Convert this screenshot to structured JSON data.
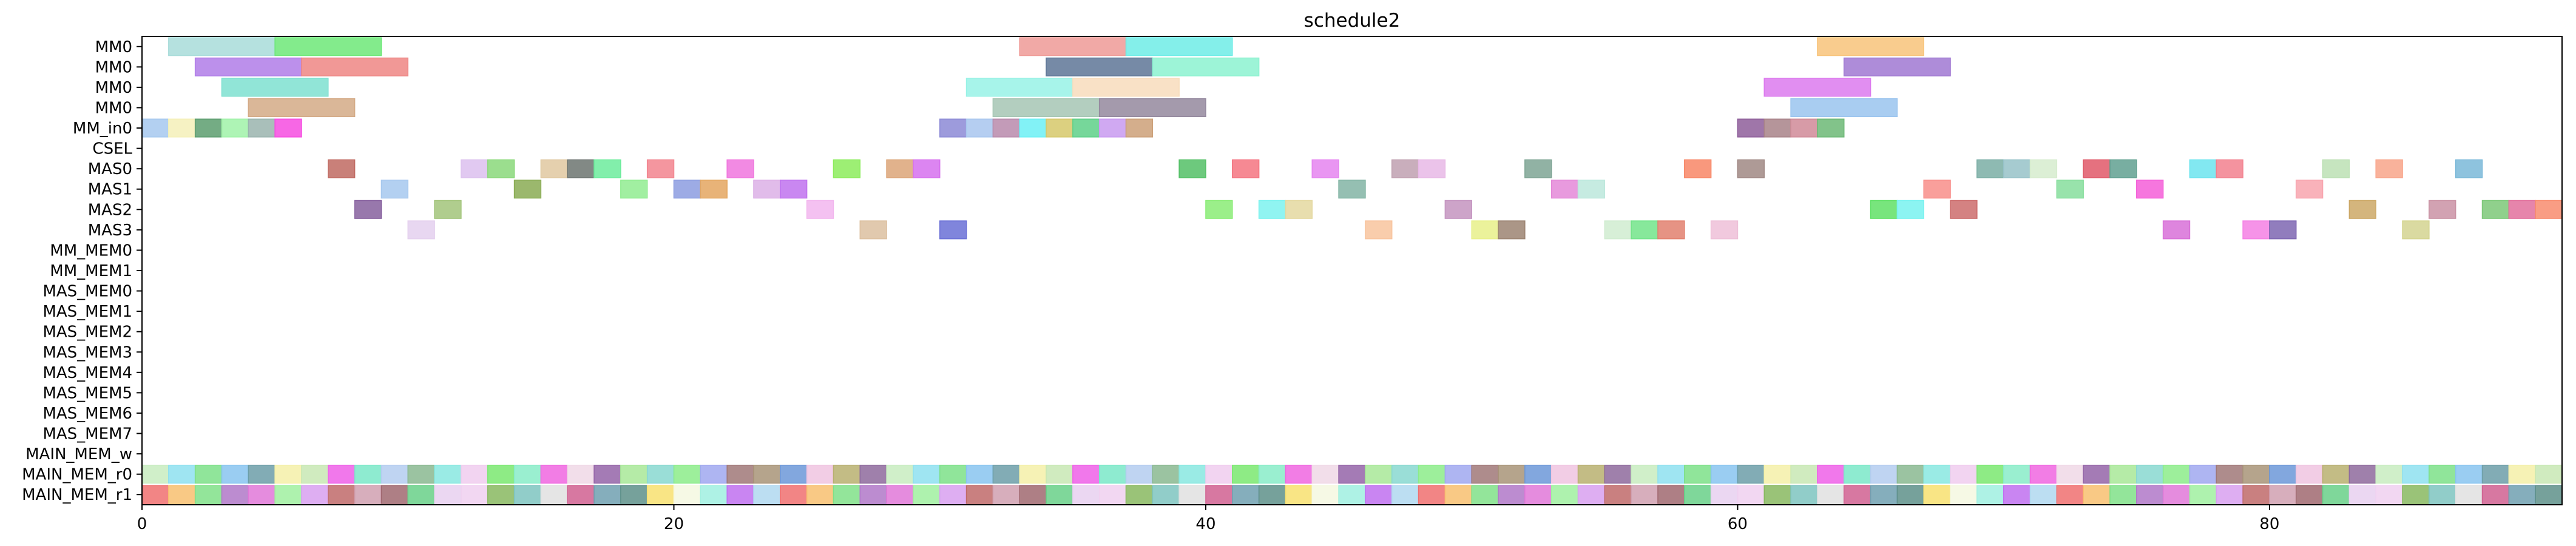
{
  "chart_data": {
    "type": "gantt",
    "title": "schedule2",
    "xlabel": "",
    "ylabel": "",
    "xlim": [
      0,
      91
    ],
    "x_ticks": [
      "0",
      "20",
      "40",
      "60",
      "80"
    ],
    "x_tick_values": [
      0,
      20,
      40,
      60,
      80
    ],
    "rows": [
      "MM0",
      "MM0",
      "MM0",
      "MM0",
      "MM_in0",
      "CSEL",
      "MAS0",
      "MAS1",
      "MAS2",
      "MAS3",
      "MM_MEM0",
      "MM_MEM1",
      "MAS_MEM0",
      "MAS_MEM1",
      "MAS_MEM2",
      "MAS_MEM3",
      "MAS_MEM4",
      "MAS_MEM5",
      "MAS_MEM6",
      "MAS_MEM7",
      "MAIN_MEM_w",
      "MAIN_MEM_r0",
      "MAIN_MEM_r1"
    ],
    "tasks": [
      {
        "row": 0,
        "start": 1,
        "end": 5,
        "color": "#a8dcd9"
      },
      {
        "row": 0,
        "start": 5,
        "end": 9,
        "color": "#6de878"
      },
      {
        "row": 0,
        "start": 33,
        "end": 37,
        "color": "#ef9a96"
      },
      {
        "row": 0,
        "start": 37,
        "end": 41,
        "color": "#6eece6"
      },
      {
        "row": 0,
        "start": 63,
        "end": 67,
        "color": "#f8c37a"
      },
      {
        "row": 1,
        "start": 2,
        "end": 6,
        "color": "#b07ce8"
      },
      {
        "row": 1,
        "start": 6,
        "end": 10,
        "color": "#ee8684"
      },
      {
        "row": 1,
        "start": 34,
        "end": 38,
        "color": "#5e7696"
      },
      {
        "row": 1,
        "start": 38,
        "end": 42,
        "color": "#8cf2d0"
      },
      {
        "row": 1,
        "start": 64,
        "end": 68,
        "color": "#a078d2"
      },
      {
        "row": 2,
        "start": 3,
        "end": 7,
        "color": "#7ee0d0"
      },
      {
        "row": 2,
        "start": 31,
        "end": 35,
        "color": "#98f2e6"
      },
      {
        "row": 2,
        "start": 35,
        "end": 39,
        "color": "#f8dcbc"
      },
      {
        "row": 2,
        "start": 61,
        "end": 65,
        "color": "#dc7aee"
      },
      {
        "row": 3,
        "start": 4,
        "end": 8,
        "color": "#d4aa86"
      },
      {
        "row": 3,
        "start": 32,
        "end": 36,
        "color": "#a6c6b4"
      },
      {
        "row": 3,
        "start": 36,
        "end": 40,
        "color": "#94889e"
      },
      {
        "row": 3,
        "start": 62,
        "end": 66,
        "color": "#9ac4ee"
      },
      {
        "row": 4,
        "start": 0,
        "end": 1,
        "color": "#a6c8ee"
      },
      {
        "row": 4,
        "start": 1,
        "end": 2,
        "color": "#f4f0b8"
      },
      {
        "row": 4,
        "start": 2,
        "end": 3,
        "color": "#5c9e6e"
      },
      {
        "row": 4,
        "start": 3,
        "end": 4,
        "color": "#a0f2a8"
      },
      {
        "row": 4,
        "start": 4,
        "end": 5,
        "color": "#9ab4ae"
      },
      {
        "row": 4,
        "start": 5,
        "end": 6,
        "color": "#f64ce0"
      },
      {
        "row": 4,
        "start": 30,
        "end": 31,
        "color": "#8c8ad6"
      },
      {
        "row": 4,
        "start": 31,
        "end": 32,
        "color": "#a8c6ee"
      },
      {
        "row": 4,
        "start": 32,
        "end": 33,
        "color": "#b88aac"
      },
      {
        "row": 4,
        "start": 33,
        "end": 34,
        "color": "#6cf0f4"
      },
      {
        "row": 4,
        "start": 34,
        "end": 35,
        "color": "#d6c86a"
      },
      {
        "row": 4,
        "start": 35,
        "end": 36,
        "color": "#5ed088"
      },
      {
        "row": 4,
        "start": 36,
        "end": 37,
        "color": "#c89af0"
      },
      {
        "row": 4,
        "start": 37,
        "end": 38,
        "color": "#cca078"
      },
      {
        "row": 4,
        "start": 60,
        "end": 61,
        "color": "#8e5e9a"
      },
      {
        "row": 4,
        "start": 61,
        "end": 62,
        "color": "#a88288"
      },
      {
        "row": 4,
        "start": 62,
        "end": 63,
        "color": "#d08a98"
      },
      {
        "row": 4,
        "start": 63,
        "end": 64,
        "color": "#6cb876"
      },
      {
        "row": 6,
        "start": 7,
        "end": 8,
        "color": "#c06a62"
      },
      {
        "row": 6,
        "start": 12,
        "end": 13,
        "color": "#dcc0ee"
      },
      {
        "row": 6,
        "start": 13,
        "end": 14,
        "color": "#8ad87a"
      },
      {
        "row": 6,
        "start": 15,
        "end": 16,
        "color": "#e0c8a0"
      },
      {
        "row": 6,
        "start": 16,
        "end": 17,
        "color": "#6c7470"
      },
      {
        "row": 6,
        "start": 17,
        "end": 18,
        "color": "#6cec9c"
      },
      {
        "row": 6,
        "start": 19,
        "end": 20,
        "color": "#f2848e"
      },
      {
        "row": 6,
        "start": 22,
        "end": 23,
        "color": "#f076de"
      },
      {
        "row": 6,
        "start": 26,
        "end": 27,
        "color": "#8cec5c"
      },
      {
        "row": 6,
        "start": 28,
        "end": 29,
        "color": "#dca478"
      },
      {
        "row": 6,
        "start": 29,
        "end": 30,
        "color": "#d670ee"
      },
      {
        "row": 6,
        "start": 39,
        "end": 40,
        "color": "#54c066"
      },
      {
        "row": 6,
        "start": 41,
        "end": 42,
        "color": "#f47480"
      },
      {
        "row": 6,
        "start": 44,
        "end": 45,
        "color": "#e584f0"
      },
      {
        "row": 6,
        "start": 47,
        "end": 48,
        "color": "#c0a0b0"
      },
      {
        "row": 6,
        "start": 48,
        "end": 49,
        "color": "#e8b8e6"
      },
      {
        "row": 6,
        "start": 52,
        "end": 53,
        "color": "#7ea494"
      },
      {
        "row": 6,
        "start": 58,
        "end": 59,
        "color": "#f88666"
      },
      {
        "row": 6,
        "start": 60,
        "end": 61,
        "color": "#a08884"
      },
      {
        "row": 6,
        "start": 69,
        "end": 70,
        "color": "#7aaea4"
      },
      {
        "row": 6,
        "start": 70,
        "end": 71,
        "color": "#96c2c8"
      },
      {
        "row": 6,
        "start": 71,
        "end": 72,
        "color": "#d6ecce"
      },
      {
        "row": 6,
        "start": 73,
        "end": 74,
        "color": "#e05868"
      },
      {
        "row": 6,
        "start": 74,
        "end": 75,
        "color": "#60a090"
      },
      {
        "row": 6,
        "start": 77,
        "end": 78,
        "color": "#6ce4ee"
      },
      {
        "row": 6,
        "start": 78,
        "end": 79,
        "color": "#f2808e"
      },
      {
        "row": 6,
        "start": 82,
        "end": 83,
        "color": "#bce0b4"
      },
      {
        "row": 6,
        "start": 84,
        "end": 85,
        "color": "#f8a48a"
      },
      {
        "row": 6,
        "start": 87,
        "end": 88,
        "color": "#7ab8d8"
      },
      {
        "row": 7,
        "start": 9,
        "end": 10,
        "color": "#a6c8ee"
      },
      {
        "row": 7,
        "start": 14,
        "end": 15,
        "color": "#8aac54"
      },
      {
        "row": 7,
        "start": 18,
        "end": 19,
        "color": "#90ec90"
      },
      {
        "row": 7,
        "start": 20,
        "end": 21,
        "color": "#8c9ce0"
      },
      {
        "row": 7,
        "start": 21,
        "end": 22,
        "color": "#e4a660"
      },
      {
        "row": 7,
        "start": 23,
        "end": 24,
        "color": "#dcb0e6"
      },
      {
        "row": 7,
        "start": 24,
        "end": 25,
        "color": "#c072ee"
      },
      {
        "row": 7,
        "start": 45,
        "end": 46,
        "color": "#82b4a4"
      },
      {
        "row": 7,
        "start": 53,
        "end": 54,
        "color": "#e488d8"
      },
      {
        "row": 7,
        "start": 54,
        "end": 55,
        "color": "#bce8dc"
      },
      {
        "row": 7,
        "start": 67,
        "end": 68,
        "color": "#f88e8a"
      },
      {
        "row": 7,
        "start": 72,
        "end": 73,
        "color": "#86de9c"
      },
      {
        "row": 7,
        "start": 75,
        "end": 76,
        "color": "#f45ed8"
      },
      {
        "row": 7,
        "start": 81,
        "end": 82,
        "color": "#f8a4ae"
      },
      {
        "row": 8,
        "start": 8,
        "end": 9,
        "color": "#86609e"
      },
      {
        "row": 8,
        "start": 11,
        "end": 12,
        "color": "#a2c47a"
      },
      {
        "row": 8,
        "start": 25,
        "end": 26,
        "color": "#f2b6ee"
      },
      {
        "row": 8,
        "start": 40,
        "end": 41,
        "color": "#8aec76"
      },
      {
        "row": 8,
        "start": 42,
        "end": 43,
        "color": "#7cf2ee"
      },
      {
        "row": 8,
        "start": 43,
        "end": 44,
        "color": "#e4d8a0"
      },
      {
        "row": 8,
        "start": 49,
        "end": 50,
        "color": "#c494c0"
      },
      {
        "row": 8,
        "start": 65,
        "end": 66,
        "color": "#60e066"
      },
      {
        "row": 8,
        "start": 66,
        "end": 67,
        "color": "#78f2f0"
      },
      {
        "row": 8,
        "start": 68,
        "end": 69,
        "color": "#cc6c6c"
      },
      {
        "row": 8,
        "start": 83,
        "end": 84,
        "color": "#cca866"
      },
      {
        "row": 8,
        "start": 86,
        "end": 87,
        "color": "#ca92a4"
      },
      {
        "row": 8,
        "start": 88,
        "end": 89,
        "color": "#7cc878"
      },
      {
        "row": 8,
        "start": 89,
        "end": 90,
        "color": "#e2709c"
      },
      {
        "row": 8,
        "start": 90,
        "end": 91,
        "color": "#f88c6e"
      },
      {
        "row": 9,
        "start": 10,
        "end": 11,
        "color": "#e4d0ee"
      },
      {
        "row": 9,
        "start": 27,
        "end": 28,
        "color": "#dcc0a0"
      },
      {
        "row": 9,
        "start": 30,
        "end": 31,
        "color": "#6a70d6"
      },
      {
        "row": 9,
        "start": 46,
        "end": 47,
        "color": "#f8c49e"
      },
      {
        "row": 9,
        "start": 50,
        "end": 51,
        "color": "#e8f08a"
      },
      {
        "row": 9,
        "start": 51,
        "end": 52,
        "color": "#9c8472"
      },
      {
        "row": 9,
        "start": 55,
        "end": 56,
        "color": "#d0ecd0"
      },
      {
        "row": 9,
        "start": 56,
        "end": 57,
        "color": "#72e48a"
      },
      {
        "row": 9,
        "start": 57,
        "end": 58,
        "color": "#e2806e"
      },
      {
        "row": 9,
        "start": 59,
        "end": 60,
        "color": "#eec0d8"
      },
      {
        "row": 9,
        "start": 76,
        "end": 77,
        "color": "#d870d8"
      },
      {
        "row": 9,
        "start": 79,
        "end": 80,
        "color": "#f480e4"
      },
      {
        "row": 9,
        "start": 80,
        "end": 81,
        "color": "#7e66b2"
      },
      {
        "row": 9,
        "start": 85,
        "end": 86,
        "color": "#d4d490"
      }
    ],
    "memory_rows": [
      {
        "row": 21,
        "start": 0,
        "end": 91,
        "palette": [
          "#c8ecc0",
          "#8ee0f0",
          "#7ce088",
          "#88c4f0",
          "#6c9ea8",
          "#f4f0a8",
          "#c8e8b4",
          "#ee60e8",
          "#7ae8c8",
          "#b4ccf0",
          "#8ab890",
          "#88e8e0",
          "#f0ccee",
          "#7ae870",
          "#88ecc8",
          "#f066e0",
          "#f0d8e6",
          "#9464a8",
          "#a8e898",
          "#88d8d0",
          "#8cec8a",
          "#a0a8f0",
          "#a07878",
          "#a89478",
          "#6c98d8",
          "#f0c4e0",
          "#b8b070",
          "#8e6a9c"
        ]
      },
      {
        "row": 22,
        "start": 0,
        "end": 91,
        "palette": [
          "#f07070",
          "#f8c070",
          "#80e088",
          "#b078c8",
          "#e078d8",
          "#a0f0a0",
          "#d8a0f0",
          "#c06a6a",
          "#d0a0b0",
          "#a06870",
          "#68d088",
          "#e8d0f0",
          "#f0d0f0",
          "#88b860",
          "#7ec4c0",
          "#e0e0e0",
          "#d06090",
          "#70a0b0",
          "#5e908a",
          "#f8e070",
          "#f4f8e0",
          "#a0f0e0",
          "#c070f0",
          "#b0d8f0"
        ]
      }
    ]
  }
}
